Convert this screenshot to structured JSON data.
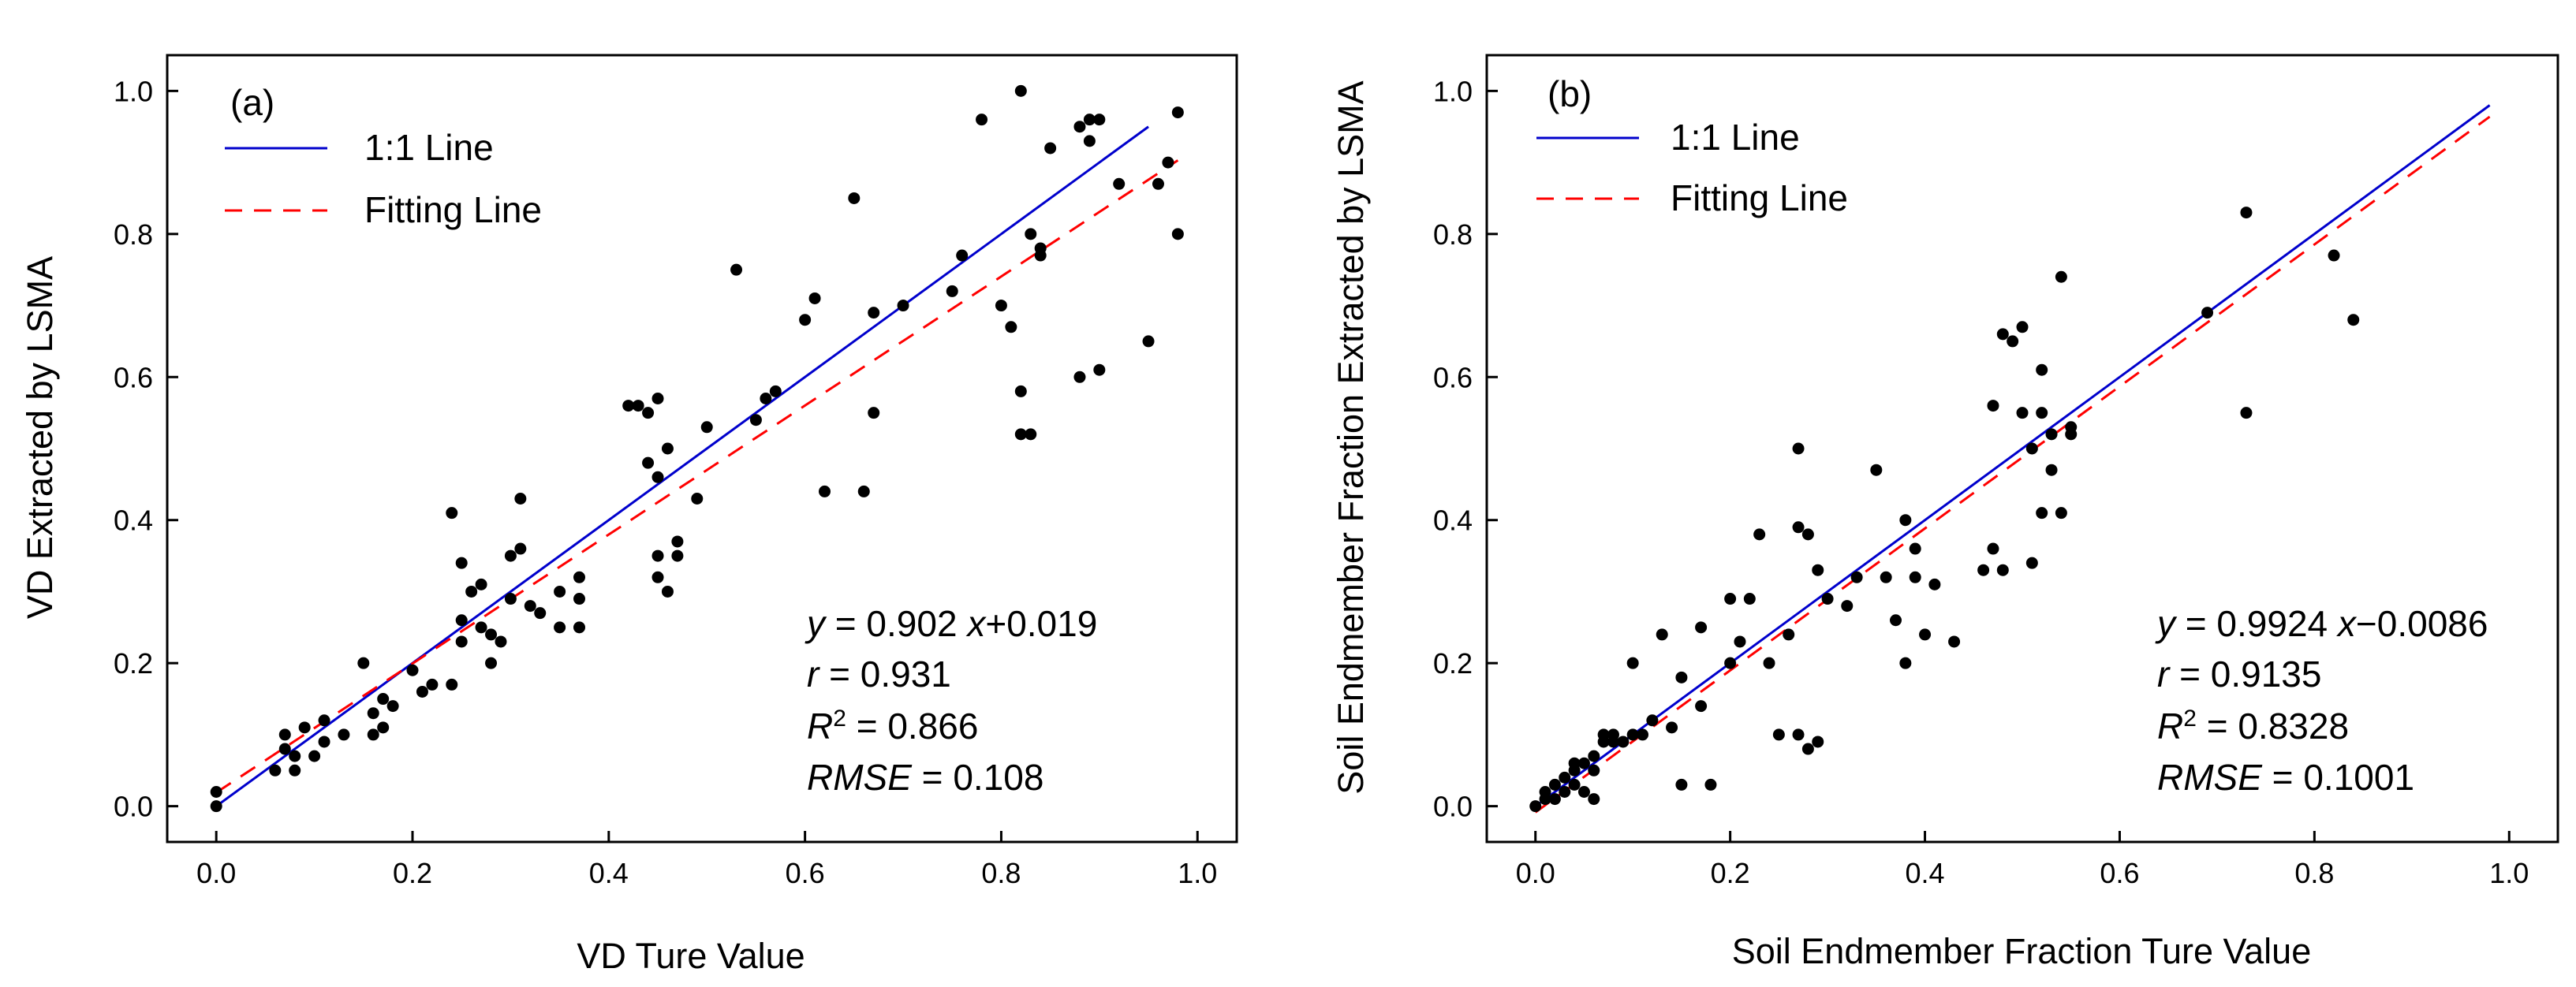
{
  "chart_data": [
    {
      "type": "scatter",
      "panel_label": "(a)",
      "xlabel": "VD Ture Value",
      "ylabel": "VD Extracted by LSMA",
      "xlim": [
        -0.05,
        1.04
      ],
      "ylim": [
        -0.05,
        1.05
      ],
      "xticks": [
        "0.0",
        "0.2",
        "0.4",
        "0.6",
        "0.8",
        "1.0"
      ],
      "yticks": [
        "0.0",
        "0.2",
        "0.4",
        "0.6",
        "0.8",
        "1.0"
      ],
      "legend": [
        "1:1 Line",
        "Fitting Line"
      ],
      "legend_position": "top-left",
      "lines": {
        "one_to_one": {
          "x": [
            0,
            0.95
          ],
          "y": [
            0,
            0.95
          ],
          "color": "#0000cc"
        },
        "fit": {
          "x": [
            0,
            0.98
          ],
          "slope": 0.902,
          "intercept": 0.019,
          "color": "#ff0000",
          "dash": true
        }
      },
      "stats": {
        "eq_y": "y",
        "eq_rest": " = 0.902 ",
        "eq_x": "x",
        "eq_tail": "+0.019",
        "r_label": "r",
        "r_value": " = 0.931",
        "r2_label": "R",
        "r2_sup": "2",
        "r2_value": " = 0.866",
        "rmse_label": "RMSE",
        "rmse_value": " = 0.108"
      },
      "points": [
        [
          0,
          0
        ],
        [
          0,
          0.02
        ],
        [
          0.06,
          0.05
        ],
        [
          0.07,
          0.1
        ],
        [
          0.07,
          0.08
        ],
        [
          0.08,
          0.07
        ],
        [
          0.08,
          0.05
        ],
        [
          0.09,
          0.11
        ],
        [
          0.1,
          0.07
        ],
        [
          0.11,
          0.09
        ],
        [
          0.11,
          0.12
        ],
        [
          0.13,
          0.1
        ],
        [
          0.15,
          0.2
        ],
        [
          0.16,
          0.1
        ],
        [
          0.16,
          0.13
        ],
        [
          0.17,
          0.15
        ],
        [
          0.17,
          0.11
        ],
        [
          0.18,
          0.14
        ],
        [
          0.2,
          0.19
        ],
        [
          0.21,
          0.16
        ],
        [
          0.22,
          0.17
        ],
        [
          0.24,
          0.41
        ],
        [
          0.24,
          0.17
        ],
        [
          0.25,
          0.26
        ],
        [
          0.25,
          0.34
        ],
        [
          0.25,
          0.23
        ],
        [
          0.26,
          0.3
        ],
        [
          0.27,
          0.25
        ],
        [
          0.27,
          0.31
        ],
        [
          0.28,
          0.2
        ],
        [
          0.28,
          0.24
        ],
        [
          0.29,
          0.23
        ],
        [
          0.3,
          0.29
        ],
        [
          0.3,
          0.35
        ],
        [
          0.31,
          0.43
        ],
        [
          0.31,
          0.36
        ],
        [
          0.32,
          0.28
        ],
        [
          0.33,
          0.27
        ],
        [
          0.35,
          0.25
        ],
        [
          0.35,
          0.3
        ],
        [
          0.37,
          0.25
        ],
        [
          0.37,
          0.29
        ],
        [
          0.37,
          0.32
        ],
        [
          0.42,
          0.56
        ],
        [
          0.43,
          0.56
        ],
        [
          0.44,
          0.55
        ],
        [
          0.44,
          0.48
        ],
        [
          0.45,
          0.57
        ],
        [
          0.45,
          0.46
        ],
        [
          0.45,
          0.32
        ],
        [
          0.45,
          0.35
        ],
        [
          0.46,
          0.3
        ],
        [
          0.46,
          0.5
        ],
        [
          0.47,
          0.35
        ],
        [
          0.47,
          0.37
        ],
        [
          0.49,
          0.43
        ],
        [
          0.5,
          0.53
        ],
        [
          0.53,
          0.75
        ],
        [
          0.55,
          0.54
        ],
        [
          0.56,
          0.57
        ],
        [
          0.57,
          0.58
        ],
        [
          0.6,
          0.68
        ],
        [
          0.61,
          0.71
        ],
        [
          0.62,
          0.44
        ],
        [
          0.65,
          0.85
        ],
        [
          0.66,
          0.44
        ],
        [
          0.67,
          0.55
        ],
        [
          0.67,
          0.69
        ],
        [
          0.7,
          0.7
        ],
        [
          0.75,
          0.72
        ],
        [
          0.76,
          0.77
        ],
        [
          0.78,
          0.96
        ],
        [
          0.8,
          0.7
        ],
        [
          0.81,
          0.67
        ],
        [
          0.82,
          0.52
        ],
        [
          0.82,
          0.58
        ],
        [
          0.83,
          0.52
        ],
        [
          0.83,
          0.8
        ],
        [
          0.84,
          0.77
        ],
        [
          0.84,
          0.78
        ],
        [
          0.85,
          0.92
        ],
        [
          0.88,
          0.6
        ],
        [
          0.88,
          0.95
        ],
        [
          0.89,
          0.93
        ],
        [
          0.89,
          0.96
        ],
        [
          0.9,
          0.61
        ],
        [
          0.9,
          0.96
        ],
        [
          0.92,
          0.87
        ],
        [
          0.95,
          0.65
        ],
        [
          0.96,
          0.87
        ],
        [
          0.97,
          0.9
        ],
        [
          0.98,
          0.8
        ],
        [
          0.98,
          0.97
        ],
        [
          0.82,
          1.0
        ]
      ]
    },
    {
      "type": "scatter",
      "panel_label": "(b)",
      "xlabel": "Soil Endmember Fraction Ture Value",
      "ylabel": "Soil Endmember Fraction Extracted by LSMA",
      "xlim": [
        -0.05,
        1.05
      ],
      "ylim": [
        -0.05,
        1.05
      ],
      "xticks": [
        "0.0",
        "0.2",
        "0.4",
        "0.6",
        "0.8",
        "1.0"
      ],
      "yticks": [
        "0.0",
        "0.2",
        "0.4",
        "0.6",
        "0.8",
        "1.0"
      ],
      "legend": [
        "1:1 Line",
        "Fitting Line"
      ],
      "legend_position": "top-left",
      "lines": {
        "one_to_one": {
          "x": [
            0,
            0.98
          ],
          "y": [
            0,
            0.98
          ],
          "color": "#0000cc"
        },
        "fit": {
          "x": [
            0,
            0.98
          ],
          "slope": 0.9924,
          "intercept": -0.0086,
          "color": "#ff0000",
          "dash": true
        }
      },
      "stats": {
        "eq_y": "y",
        "eq_rest": " = 0.9924 ",
        "eq_x": "x",
        "eq_tail": "−0.0086",
        "r_label": "r",
        "r_value": " = 0.9135",
        "r2_label": "R",
        "r2_sup": "2",
        "r2_value": " = 0.8328",
        "rmse_label": "RMSE",
        "rmse_value": " = 0.1001"
      },
      "points": [
        [
          0,
          0
        ],
        [
          0.01,
          0.01
        ],
        [
          0.01,
          0.02
        ],
        [
          0.02,
          0.03
        ],
        [
          0.02,
          0.01
        ],
        [
          0.03,
          0.04
        ],
        [
          0.03,
          0.02
        ],
        [
          0.04,
          0.05
        ],
        [
          0.04,
          0.03
        ],
        [
          0.04,
          0.06
        ],
        [
          0.05,
          0.02
        ],
        [
          0.05,
          0.06
        ],
        [
          0.06,
          0.05
        ],
        [
          0.06,
          0.07
        ],
        [
          0.06,
          0.01
        ],
        [
          0.07,
          0.09
        ],
        [
          0.07,
          0.1
        ],
        [
          0.08,
          0.09
        ],
        [
          0.08,
          0.1
        ],
        [
          0.09,
          0.09
        ],
        [
          0.1,
          0.2
        ],
        [
          0.1,
          0.1
        ],
        [
          0.11,
          0.1
        ],
        [
          0.12,
          0.12
        ],
        [
          0.13,
          0.24
        ],
        [
          0.14,
          0.11
        ],
        [
          0.15,
          0.18
        ],
        [
          0.15,
          0.03
        ],
        [
          0.17,
          0.25
        ],
        [
          0.17,
          0.14
        ],
        [
          0.18,
          0.03
        ],
        [
          0.2,
          0.29
        ],
        [
          0.2,
          0.2
        ],
        [
          0.21,
          0.23
        ],
        [
          0.22,
          0.29
        ],
        [
          0.23,
          0.38
        ],
        [
          0.24,
          0.2
        ],
        [
          0.25,
          0.1
        ],
        [
          0.26,
          0.24
        ],
        [
          0.27,
          0.5
        ],
        [
          0.27,
          0.39
        ],
        [
          0.27,
          0.1
        ],
        [
          0.28,
          0.38
        ],
        [
          0.28,
          0.08
        ],
        [
          0.29,
          0.09
        ],
        [
          0.29,
          0.33
        ],
        [
          0.3,
          0.29
        ],
        [
          0.32,
          0.28
        ],
        [
          0.33,
          0.32
        ],
        [
          0.35,
          0.47
        ],
        [
          0.36,
          0.32
        ],
        [
          0.37,
          0.26
        ],
        [
          0.38,
          0.4
        ],
        [
          0.38,
          0.2
        ],
        [
          0.39,
          0.36
        ],
        [
          0.39,
          0.32
        ],
        [
          0.4,
          0.24
        ],
        [
          0.41,
          0.31
        ],
        [
          0.43,
          0.23
        ],
        [
          0.46,
          0.33
        ],
        [
          0.47,
          0.36
        ],
        [
          0.47,
          0.56
        ],
        [
          0.48,
          0.33
        ],
        [
          0.48,
          0.66
        ],
        [
          0.49,
          0.65
        ],
        [
          0.5,
          0.55
        ],
        [
          0.5,
          0.67
        ],
        [
          0.51,
          0.5
        ],
        [
          0.51,
          0.34
        ],
        [
          0.52,
          0.61
        ],
        [
          0.52,
          0.41
        ],
        [
          0.52,
          0.55
        ],
        [
          0.53,
          0.47
        ],
        [
          0.53,
          0.52
        ],
        [
          0.54,
          0.74
        ],
        [
          0.54,
          0.41
        ],
        [
          0.55,
          0.53
        ],
        [
          0.55,
          0.52
        ],
        [
          0.69,
          0.69
        ],
        [
          0.73,
          0.55
        ],
        [
          0.73,
          0.83
        ],
        [
          0.82,
          0.77
        ],
        [
          0.84,
          0.68
        ]
      ]
    }
  ]
}
